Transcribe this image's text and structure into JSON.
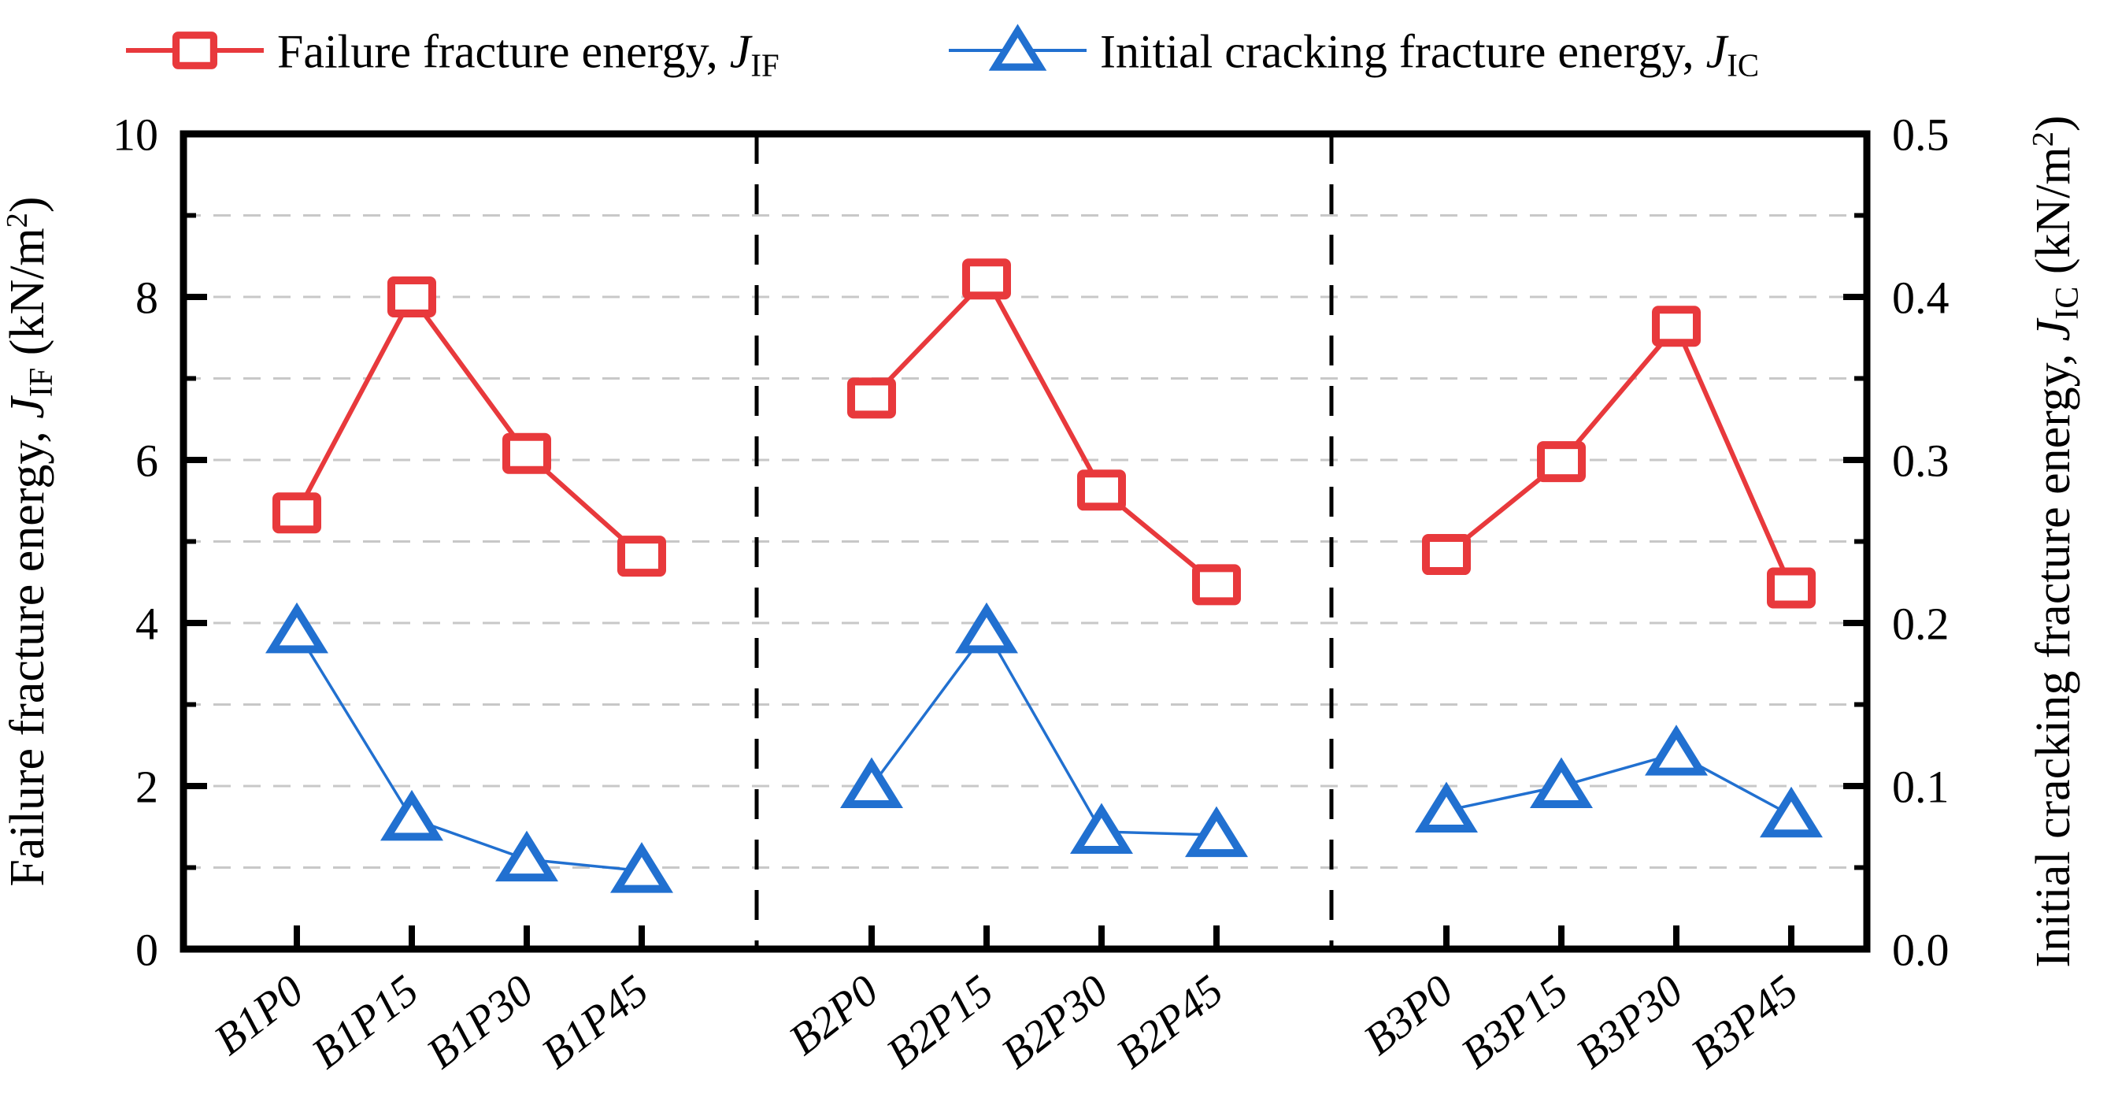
{
  "figure": {
    "background": "#ffffff"
  },
  "legend": {
    "items": [
      {
        "marker": "square",
        "color": "#e8393c",
        "parts": [
          {
            "t": "Failure fracture energy, "
          },
          {
            "t": "J",
            "style": "italic"
          },
          {
            "t": "IF",
            "style": "sub"
          }
        ],
        "label_plain": "Failure fracture energy, J_IF"
      },
      {
        "marker": "triangle",
        "color": "#2170d0",
        "parts": [
          {
            "t": "Initial cracking fracture energy, "
          },
          {
            "t": "J",
            "style": "italic"
          },
          {
            "t": "IC",
            "style": "sub"
          }
        ],
        "label_plain": "Initial cracking fracture energy, J_IC"
      }
    ]
  },
  "chart_data": {
    "type": "line",
    "categories": [
      "B1P0",
      "B1P15",
      "B1P30",
      "B1P45",
      "B2P0",
      "B2P15",
      "B2P30",
      "B2P45",
      "B3P0",
      "B3P15",
      "B3P30",
      "B3P45"
    ],
    "group_size": 4,
    "series": [
      {
        "name": "Failure fracture energy, J_IF",
        "axis": "left",
        "marker": "square",
        "color": "#e8393c",
        "values": [
          5.35,
          8.0,
          6.08,
          4.82,
          6.76,
          8.22,
          5.63,
          4.47,
          4.84,
          5.98,
          7.64,
          4.43
        ]
      },
      {
        "name": "Initial cracking fracture energy, J_IC",
        "axis": "right",
        "marker": "triangle",
        "color": "#2170d0",
        "values": [
          0.195,
          0.08,
          0.055,
          0.048,
          0.1,
          0.195,
          0.072,
          0.07,
          0.085,
          0.1,
          0.12,
          0.082
        ]
      }
    ],
    "left_axis": {
      "min": 0,
      "max": 10,
      "major_ticks": [
        0,
        2,
        4,
        6,
        8,
        10
      ],
      "major_labels": [
        "0",
        "2",
        "4",
        "6",
        "8",
        "10"
      ],
      "minor_ticks": [
        1,
        3,
        5,
        7,
        9
      ],
      "label_parts": [
        {
          "t": "Failure fracture energy, "
        },
        {
          "t": "J",
          "style": "italic"
        },
        {
          "t": "IF",
          "style": "sub"
        },
        {
          "t": " (kN/m"
        },
        {
          "t": "2",
          "style": "sup"
        },
        {
          "t": ")"
        }
      ],
      "label_plain": "Failure fracture energy, J_IF (kN/m2)"
    },
    "right_axis": {
      "min": 0,
      "max": 0.5,
      "major_ticks": [
        0,
        0.1,
        0.2,
        0.3,
        0.4,
        0.5
      ],
      "major_labels": [
        "0.0",
        "0.1",
        "0.2",
        "0.3",
        "0.4",
        "0.5"
      ],
      "minor_ticks": [
        0.05,
        0.15,
        0.25,
        0.35,
        0.45
      ],
      "label_parts": [
        {
          "t": "Initial cracking fracture energy, "
        },
        {
          "t": "J",
          "style": "italic"
        },
        {
          "t": "IC",
          "style": "sub"
        },
        {
          "t": " (kN/m"
        },
        {
          "t": "2",
          "style": "sup"
        },
        {
          "t": ")"
        }
      ],
      "label_plain": "Initial cracking fracture energy, J_IC (kN/m2)"
    },
    "gridline_values_left": [
      1,
      2,
      3,
      4,
      5,
      6,
      7,
      8,
      9
    ],
    "gridline_color": "#c8c8c8",
    "separator_color": "#000000",
    "grid_on": true,
    "legend_position": "top"
  }
}
